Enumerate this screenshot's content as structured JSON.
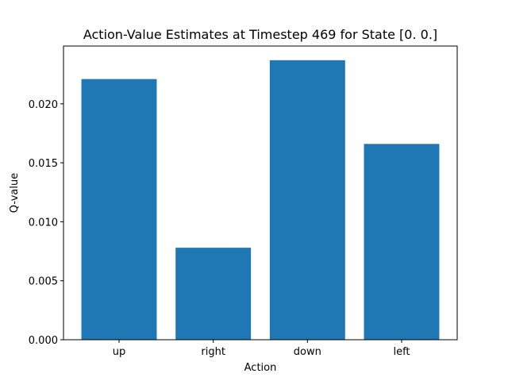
{
  "chart_data": {
    "type": "bar",
    "title": "Action-Value Estimates at Timestep 469 for State [0. 0.]",
    "xlabel": "Action",
    "ylabel": "Q-value",
    "categories": [
      "up",
      "right",
      "down",
      "left"
    ],
    "values": [
      0.0221,
      0.0078,
      0.0237,
      0.0166
    ],
    "ylim": [
      0,
      0.0249
    ],
    "yticks": [
      0.0,
      0.005,
      0.01,
      0.015,
      0.02
    ],
    "ytick_labels": [
      "0.000",
      "0.005",
      "0.010",
      "0.015",
      "0.020"
    ],
    "grid": false,
    "legend": "none",
    "bar_color": "#1f77b4"
  }
}
